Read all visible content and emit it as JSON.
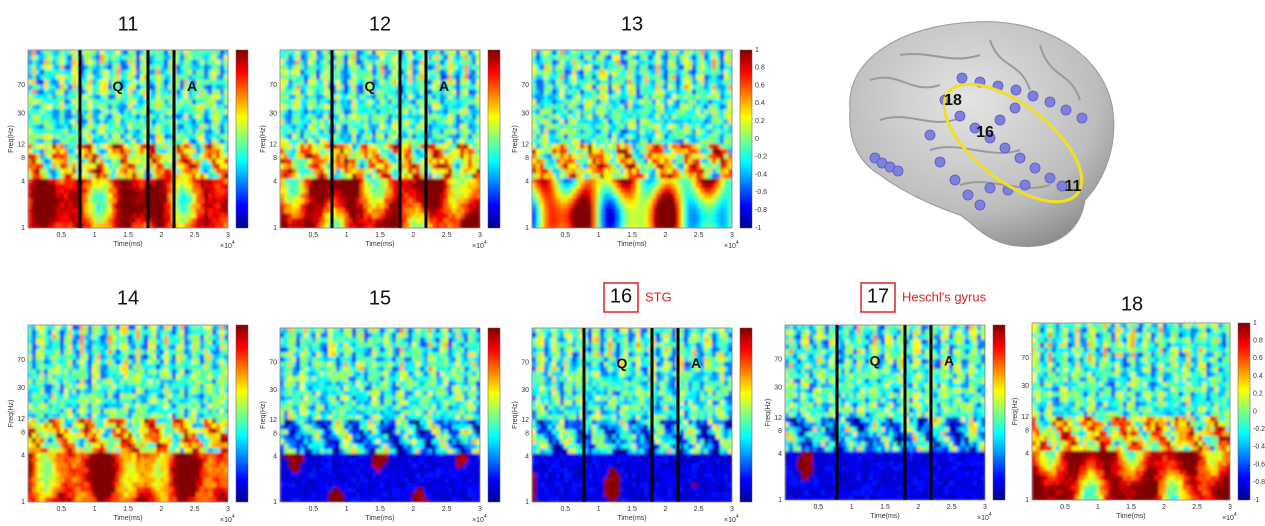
{
  "panels": [
    {
      "number": "11",
      "markers": [
        "Q",
        "A"
      ]
    },
    {
      "number": "12",
      "markers": [
        "Q",
        "A"
      ]
    },
    {
      "number": "13",
      "colorbar_ticks": [
        "1",
        "0.8",
        "0.6",
        "0.4",
        "0.2",
        "0",
        "-0.2",
        "-0.4",
        "-0.6",
        "-0.8",
        "-1"
      ]
    },
    {
      "number": "14"
    },
    {
      "number": "15"
    },
    {
      "number": "16",
      "region": "STG",
      "markers": [
        "Q",
        "A"
      ]
    },
    {
      "number": "17",
      "region": "Heschl's gyrus",
      "markers": [
        "Q",
        "A"
      ]
    },
    {
      "number": "18",
      "colorbar_ticks": [
        "1",
        "0.8",
        "0.6",
        "0.4",
        "0.2",
        "0",
        "-0.2",
        "-0.4",
        "-0.6",
        "-0.8",
        "-1"
      ]
    }
  ],
  "y_axis_label": "Freq(Hz)",
  "x_axis_label": "Time(ms)",
  "y_ticks": [
    "1",
    "4",
    "8",
    "12",
    "30",
    "70"
  ],
  "x_ticks": [
    "0.5",
    "1",
    "1.5",
    "2",
    "2.5",
    "3"
  ],
  "x_scale": {
    "base": "×10",
    "exponent": "4"
  },
  "brain": {
    "electrode_labels": [
      "18",
      "16",
      "11"
    ]
  }
}
